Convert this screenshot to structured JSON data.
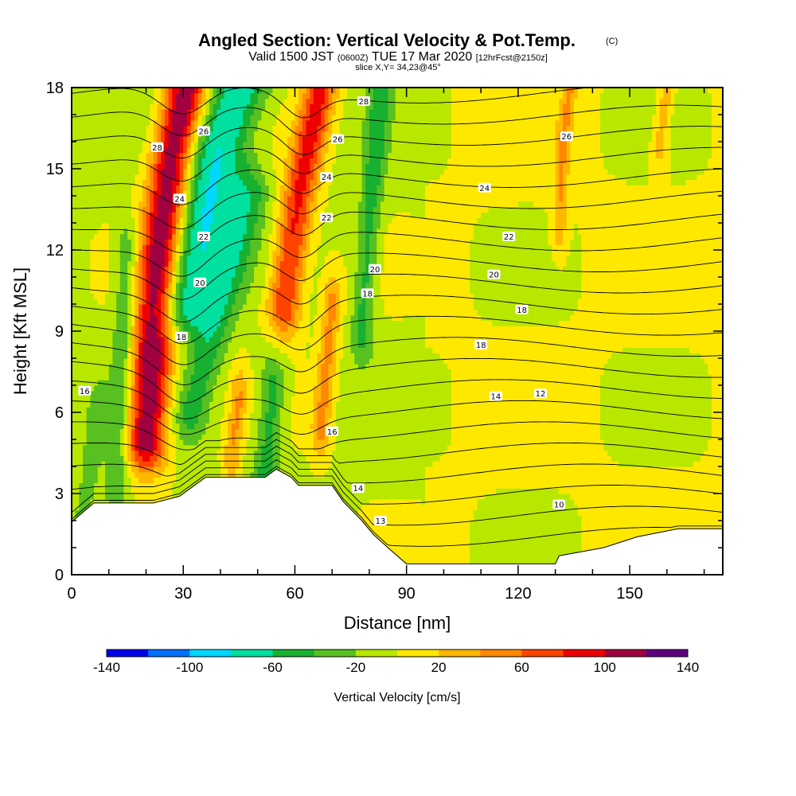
{
  "header": {
    "title": "Angled Section: Vertical Velocity & Pot.Temp.",
    "title_unit": "(C)",
    "valid_prefix": "Valid 1500 JST",
    "valid_utc": "(0600Z)",
    "valid_suffix": "TUE 17 Mar 2020",
    "forecast": "[12hrFcst@2150z]",
    "slice": "slice X,Y= 34,23@45°"
  },
  "chart_data": {
    "type": "heatmap",
    "title": "Angled Section: Vertical Velocity & Pot.Temp. (C)",
    "xlabel": "Distance [nm]",
    "ylabel": "Height [Kft MSL]",
    "xlim": [
      0,
      175
    ],
    "ylim": [
      0,
      18
    ],
    "x_ticks": [
      "0",
      "30",
      "60",
      "90",
      "120",
      "150"
    ],
    "y_ticks": [
      "0",
      "3",
      "6",
      "9",
      "12",
      "15",
      "18"
    ],
    "colorbar": {
      "title": "Vertical Velocity [cm/s]",
      "tick_labels": [
        "-140",
        "-100",
        "-60",
        "-20",
        "20",
        "60",
        "100",
        "140"
      ],
      "levels": [
        -140,
        -120,
        -100,
        -80,
        -60,
        -40,
        -20,
        0,
        20,
        40,
        60,
        80,
        100,
        120,
        140
      ],
      "colors": [
        "#0000ee",
        "#0070ff",
        "#00d8ff",
        "#00e0a0",
        "#18b030",
        "#58c020",
        "#b8e800",
        "#ffe800",
        "#ffb800",
        "#ff8800",
        "#ff4400",
        "#ee0000",
        "#a00040",
        "#600080"
      ]
    },
    "terrain_kft": [
      [
        0,
        1.95
      ],
      [
        3,
        2.3
      ],
      [
        6,
        2.65
      ],
      [
        22,
        2.65
      ],
      [
        29,
        2.9
      ],
      [
        32,
        3.2
      ],
      [
        36,
        3.6
      ],
      [
        52,
        3.6
      ],
      [
        55,
        3.9
      ],
      [
        59,
        3.6
      ],
      [
        61,
        3.3
      ],
      [
        70,
        3.3
      ],
      [
        73,
        2.7
      ],
      [
        78,
        2.0
      ],
      [
        81,
        1.5
      ],
      [
        85,
        1.0
      ],
      [
        90,
        0.4
      ],
      [
        130,
        0.4
      ],
      [
        131,
        0.7
      ],
      [
        143,
        1.0
      ],
      [
        152,
        1.4
      ],
      [
        163,
        1.7
      ],
      [
        175,
        1.7
      ]
    ],
    "updrafts": [
      {
        "x": [
          20,
          22,
          24,
          27,
          31
        ],
        "y": [
          5,
          9,
          12,
          15.5,
          18
        ],
        "w": 5.5,
        "peak": 130
      },
      {
        "x": [
          57,
          59,
          61,
          64,
          67
        ],
        "y": [
          10,
          12,
          14,
          16,
          18
        ],
        "w": 4.5,
        "peak": 90
      },
      {
        "x": [
          67,
          68,
          69,
          70
        ],
        "y": [
          5.5,
          7,
          8.5,
          10
        ],
        "w": 2.6,
        "peak": 50
      },
      {
        "x": [
          43,
          44,
          45
        ],
        "y": [
          4.5,
          5.5,
          6.5
        ],
        "w": 2.2,
        "peak": 40
      },
      {
        "x": [
          131,
          132,
          134
        ],
        "y": [
          13,
          16,
          18
        ],
        "w": 2.0,
        "peak": 40
      },
      {
        "x": [
          158,
          159,
          160
        ],
        "y": [
          16,
          17,
          18
        ],
        "w": 2.0,
        "peak": 35
      }
    ],
    "downdrafts": [
      {
        "x": [
          30,
          35,
          40,
          45
        ],
        "y": [
          10,
          13,
          16,
          18
        ],
        "w": 8.0,
        "peak": -80
      },
      {
        "x": [
          32,
          38,
          44,
          48
        ],
        "y": [
          6,
          9,
          12,
          14
        ],
        "w": 5.0,
        "peak": -45
      },
      {
        "x": [
          12,
          13,
          14,
          15
        ],
        "y": [
          3,
          6,
          9,
          12
        ],
        "w": 3.0,
        "peak": -40
      },
      {
        "x": [
          52,
          53,
          54
        ],
        "y": [
          3.8,
          5,
          7
        ],
        "w": 3.5,
        "peak": -50
      },
      {
        "x": [
          78,
          80,
          83
        ],
        "y": [
          9,
          13,
          18
        ],
        "w": 3.0,
        "peak": -45
      },
      {
        "x": [
          3,
          5,
          7
        ],
        "y": [
          2,
          4,
          6
        ],
        "w": 3.0,
        "peak": -25
      }
    ],
    "isotherm_labels": [
      {
        "text": "28",
        "x": 23,
        "y": 15.8
      },
      {
        "text": "26",
        "x": 35.5,
        "y": 16.4
      },
      {
        "text": "24",
        "x": 29,
        "y": 13.9
      },
      {
        "text": "22",
        "x": 35.5,
        "y": 12.5
      },
      {
        "text": "20",
        "x": 34.5,
        "y": 10.8
      },
      {
        "text": "18",
        "x": 29.5,
        "y": 8.8
      },
      {
        "text": "16",
        "x": 3.5,
        "y": 6.8
      },
      {
        "text": "28",
        "x": 78.5,
        "y": 17.5
      },
      {
        "text": "26",
        "x": 71.5,
        "y": 16.1
      },
      {
        "text": "24",
        "x": 68.5,
        "y": 14.7
      },
      {
        "text": "22",
        "x": 68.5,
        "y": 13.2
      },
      {
        "text": "20",
        "x": 81.5,
        "y": 11.3
      },
      {
        "text": "18",
        "x": 79.5,
        "y": 10.4
      },
      {
        "text": "16",
        "x": 70,
        "y": 5.3
      },
      {
        "text": "14",
        "x": 77,
        "y": 3.2
      },
      {
        "text": "13",
        "x": 83,
        "y": 2.0
      },
      {
        "text": "26",
        "x": 133,
        "y": 16.2
      },
      {
        "text": "24",
        "x": 111,
        "y": 14.3
      },
      {
        "text": "22",
        "x": 117.5,
        "y": 12.5
      },
      {
        "text": "20",
        "x": 113.5,
        "y": 11.1
      },
      {
        "text": "18",
        "x": 121,
        "y": 9.8
      },
      {
        "text": "18",
        "x": 110,
        "y": 8.5
      },
      {
        "text": "14",
        "x": 114,
        "y": 6.6
      },
      {
        "text": "12",
        "x": 126,
        "y": 6.7
      },
      {
        "text": "10",
        "x": 131,
        "y": 2.6
      }
    ]
  }
}
